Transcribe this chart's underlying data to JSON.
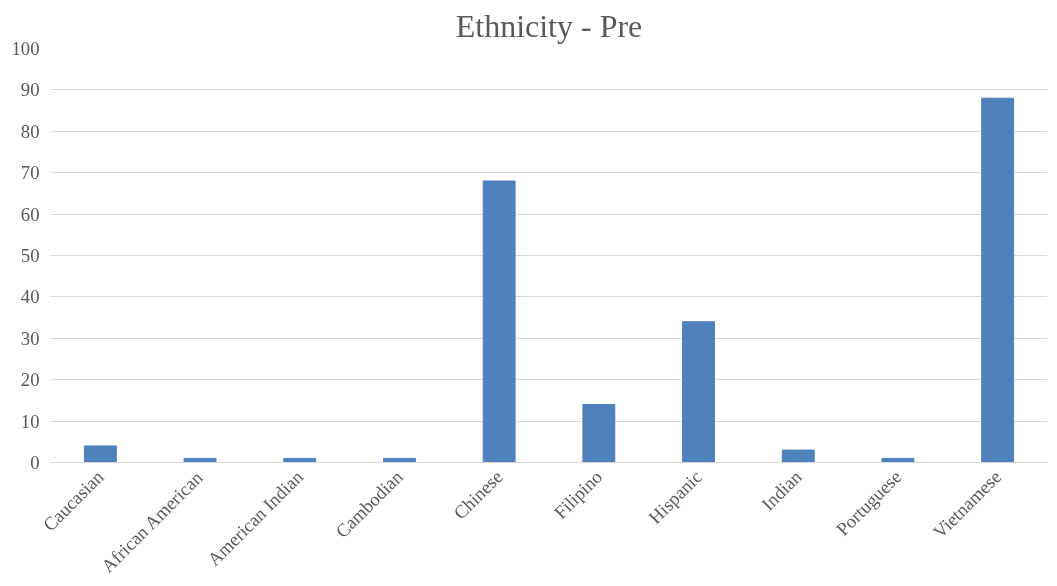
{
  "chart_data": {
    "type": "bar",
    "title": "Ethnicity - Pre",
    "categories": [
      "Caucasian",
      "African American",
      "American Indian",
      "Cambodian",
      "Chinese",
      "Filipino",
      "Hispanic",
      "Indian",
      "Portuguese",
      "Vietnamese"
    ],
    "values": [
      4,
      1,
      1,
      1,
      68,
      14,
      34,
      3,
      1,
      88
    ],
    "color": "#4f81bd",
    "ylim": [
      0,
      100
    ],
    "yticks": [
      0,
      10,
      20,
      30,
      40,
      50,
      60,
      70,
      80,
      90,
      100
    ],
    "grid": "y"
  }
}
